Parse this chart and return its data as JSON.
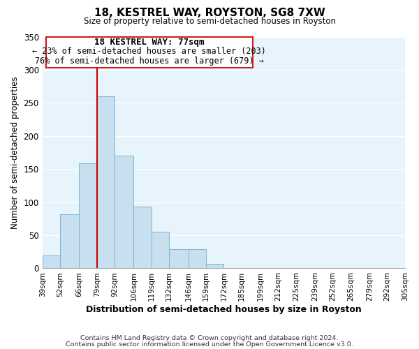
{
  "title": "18, KESTREL WAY, ROYSTON, SG8 7XW",
  "subtitle": "Size of property relative to semi-detached houses in Royston",
  "xlabel": "Distribution of semi-detached houses by size in Royston",
  "ylabel": "Number of semi-detached properties",
  "bin_labels": [
    "39sqm",
    "52sqm",
    "66sqm",
    "79sqm",
    "92sqm",
    "106sqm",
    "119sqm",
    "132sqm",
    "146sqm",
    "159sqm",
    "172sqm",
    "185sqm",
    "199sqm",
    "212sqm",
    "225sqm",
    "239sqm",
    "252sqm",
    "265sqm",
    "279sqm",
    "292sqm",
    "305sqm"
  ],
  "bin_edges": [
    39,
    52,
    66,
    79,
    92,
    106,
    119,
    132,
    146,
    159,
    172,
    185,
    199,
    212,
    225,
    239,
    252,
    265,
    279,
    292,
    305
  ],
  "bar_heights": [
    19,
    82,
    159,
    260,
    170,
    93,
    55,
    29,
    29,
    7,
    1,
    0,
    0,
    0,
    0,
    0,
    0,
    0,
    0,
    0
  ],
  "bar_color": "#c8dff0",
  "bar_edge_color": "#7ab4d4",
  "property_line_x": 79,
  "property_line_color": "#cc0000",
  "annotation_title": "18 KESTREL WAY: 77sqm",
  "annotation_line1": "← 23% of semi-detached houses are smaller (203)",
  "annotation_line2": "76% of semi-detached houses are larger (679) →",
  "annotation_box_color": "#ffffff",
  "annotation_box_edge": "#cc0000",
  "ylim": [
    0,
    350
  ],
  "yticks": [
    0,
    50,
    100,
    150,
    200,
    250,
    300,
    350
  ],
  "footer1": "Contains HM Land Registry data © Crown copyright and database right 2024.",
  "footer2": "Contains public sector information licensed under the Open Government Licence v3.0.",
  "bg_color": "#e8f4fb"
}
